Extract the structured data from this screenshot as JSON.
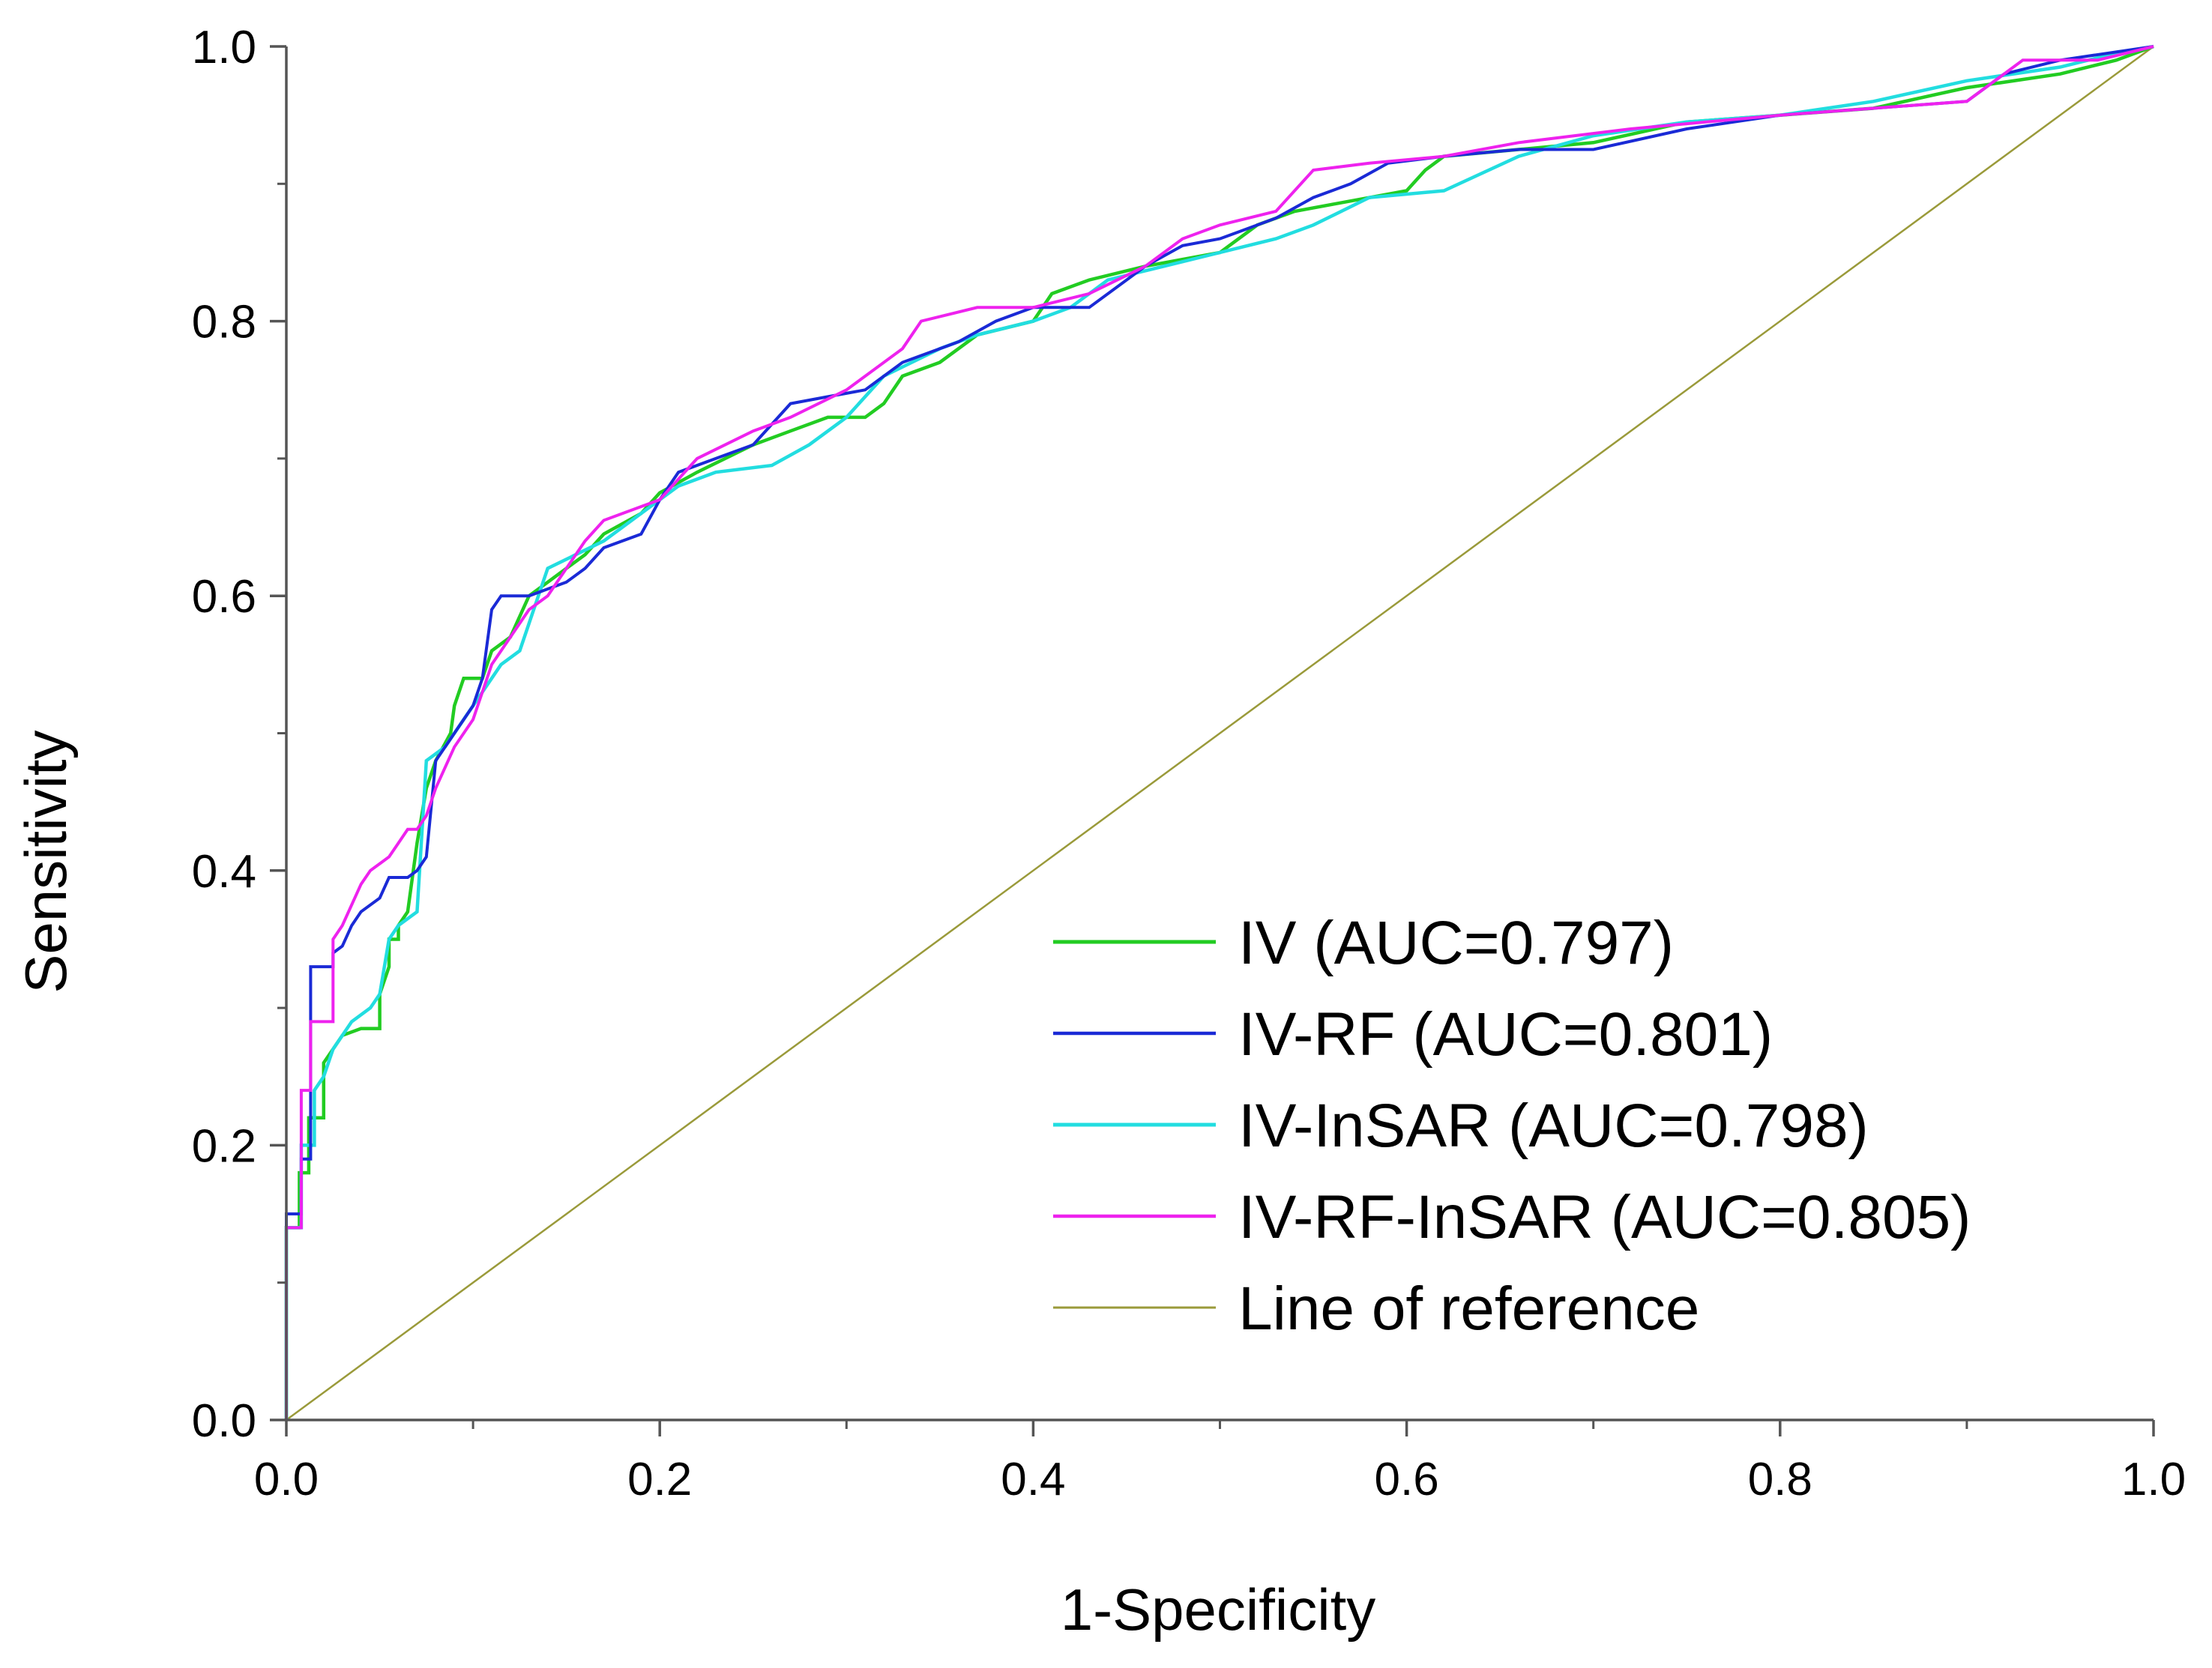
{
  "chart_data": {
    "type": "line",
    "title": "",
    "xlabel": "1-Specificity",
    "ylabel": "Sensitivity",
    "xlim": [
      0,
      1
    ],
    "ylim": [
      0,
      1
    ],
    "x_ticks": [
      "0.0",
      "0.2",
      "0.4",
      "0.6",
      "0.8",
      "1.0"
    ],
    "y_ticks": [
      "0.0",
      "0.2",
      "0.4",
      "0.6",
      "0.8",
      "1.0"
    ],
    "grid": false,
    "legend_position": "bottom-right",
    "series": [
      {
        "name": "IV (AUC=0.797)",
        "color": "#22cc22",
        "line_width": 4.5,
        "points": [
          [
            0,
            0
          ],
          [
            0,
            0.14
          ],
          [
            0.007,
            0.14
          ],
          [
            0.007,
            0.18
          ],
          [
            0.012,
            0.18
          ],
          [
            0.012,
            0.22
          ],
          [
            0.02,
            0.22
          ],
          [
            0.02,
            0.26
          ],
          [
            0.025,
            0.27
          ],
          [
            0.03,
            0.28
          ],
          [
            0.04,
            0.285
          ],
          [
            0.05,
            0.285
          ],
          [
            0.05,
            0.31
          ],
          [
            0.055,
            0.33
          ],
          [
            0.055,
            0.35
          ],
          [
            0.06,
            0.35
          ],
          [
            0.06,
            0.36
          ],
          [
            0.065,
            0.37
          ],
          [
            0.07,
            0.42
          ],
          [
            0.075,
            0.46
          ],
          [
            0.08,
            0.48
          ],
          [
            0.088,
            0.5
          ],
          [
            0.09,
            0.52
          ],
          [
            0.095,
            0.54
          ],
          [
            0.105,
            0.54
          ],
          [
            0.11,
            0.56
          ],
          [
            0.12,
            0.57
          ],
          [
            0.13,
            0.6
          ],
          [
            0.14,
            0.61
          ],
          [
            0.15,
            0.62
          ],
          [
            0.16,
            0.63
          ],
          [
            0.17,
            0.645
          ],
          [
            0.19,
            0.66
          ],
          [
            0.2,
            0.675
          ],
          [
            0.22,
            0.69
          ],
          [
            0.25,
            0.71
          ],
          [
            0.27,
            0.72
          ],
          [
            0.29,
            0.73
          ],
          [
            0.31,
            0.73
          ],
          [
            0.32,
            0.74
          ],
          [
            0.33,
            0.76
          ],
          [
            0.35,
            0.77
          ],
          [
            0.37,
            0.79
          ],
          [
            0.4,
            0.8
          ],
          [
            0.41,
            0.82
          ],
          [
            0.43,
            0.83
          ],
          [
            0.46,
            0.84
          ],
          [
            0.5,
            0.85
          ],
          [
            0.52,
            0.87
          ],
          [
            0.54,
            0.88
          ],
          [
            0.56,
            0.885
          ],
          [
            0.6,
            0.895
          ],
          [
            0.61,
            0.91
          ],
          [
            0.62,
            0.92
          ],
          [
            0.66,
            0.925
          ],
          [
            0.7,
            0.93
          ],
          [
            0.75,
            0.945
          ],
          [
            0.8,
            0.95
          ],
          [
            0.85,
            0.955
          ],
          [
            0.9,
            0.97
          ],
          [
            0.95,
            0.98
          ],
          [
            0.98,
            0.99
          ],
          [
            1,
            1
          ]
        ]
      },
      {
        "name": "IV-RF (AUC=0.801)",
        "color": "#1a2ad6",
        "line_width": 4,
        "points": [
          [
            0,
            0
          ],
          [
            0,
            0.15
          ],
          [
            0.008,
            0.15
          ],
          [
            0.008,
            0.19
          ],
          [
            0.013,
            0.19
          ],
          [
            0.013,
            0.33
          ],
          [
            0.025,
            0.33
          ],
          [
            0.025,
            0.34
          ],
          [
            0.03,
            0.345
          ],
          [
            0.035,
            0.36
          ],
          [
            0.04,
            0.37
          ],
          [
            0.05,
            0.38
          ],
          [
            0.055,
            0.395
          ],
          [
            0.065,
            0.395
          ],
          [
            0.07,
            0.4
          ],
          [
            0.075,
            0.41
          ],
          [
            0.08,
            0.48
          ],
          [
            0.09,
            0.5
          ],
          [
            0.1,
            0.52
          ],
          [
            0.105,
            0.54
          ],
          [
            0.11,
            0.59
          ],
          [
            0.115,
            0.6
          ],
          [
            0.13,
            0.6
          ],
          [
            0.14,
            0.605
          ],
          [
            0.15,
            0.61
          ],
          [
            0.16,
            0.62
          ],
          [
            0.17,
            0.635
          ],
          [
            0.19,
            0.645
          ],
          [
            0.2,
            0.67
          ],
          [
            0.21,
            0.69
          ],
          [
            0.23,
            0.7
          ],
          [
            0.25,
            0.71
          ],
          [
            0.27,
            0.74
          ],
          [
            0.29,
            0.745
          ],
          [
            0.31,
            0.75
          ],
          [
            0.33,
            0.77
          ],
          [
            0.36,
            0.785
          ],
          [
            0.38,
            0.8
          ],
          [
            0.4,
            0.81
          ],
          [
            0.43,
            0.81
          ],
          [
            0.46,
            0.84
          ],
          [
            0.48,
            0.855
          ],
          [
            0.5,
            0.86
          ],
          [
            0.53,
            0.875
          ],
          [
            0.55,
            0.89
          ],
          [
            0.57,
            0.9
          ],
          [
            0.59,
            0.915
          ],
          [
            0.62,
            0.92
          ],
          [
            0.66,
            0.925
          ],
          [
            0.7,
            0.925
          ],
          [
            0.75,
            0.94
          ],
          [
            0.8,
            0.95
          ],
          [
            0.85,
            0.955
          ],
          [
            0.9,
            0.96
          ],
          [
            0.92,
            0.98
          ],
          [
            0.95,
            0.99
          ],
          [
            1,
            1
          ]
        ]
      },
      {
        "name": "IV-InSAR (AUC=0.798)",
        "color": "#22dde0",
        "line_width": 4.5,
        "points": [
          [
            0,
            0
          ],
          [
            0,
            0.14
          ],
          [
            0.008,
            0.14
          ],
          [
            0.008,
            0.2
          ],
          [
            0.015,
            0.2
          ],
          [
            0.015,
            0.24
          ],
          [
            0.02,
            0.25
          ],
          [
            0.025,
            0.27
          ],
          [
            0.035,
            0.29
          ],
          [
            0.045,
            0.3
          ],
          [
            0.05,
            0.31
          ],
          [
            0.055,
            0.35
          ],
          [
            0.06,
            0.36
          ],
          [
            0.07,
            0.37
          ],
          [
            0.075,
            0.48
          ],
          [
            0.085,
            0.49
          ],
          [
            0.095,
            0.51
          ],
          [
            0.105,
            0.53
          ],
          [
            0.115,
            0.55
          ],
          [
            0.125,
            0.56
          ],
          [
            0.13,
            0.58
          ],
          [
            0.14,
            0.62
          ],
          [
            0.155,
            0.63
          ],
          [
            0.17,
            0.64
          ],
          [
            0.19,
            0.66
          ],
          [
            0.21,
            0.68
          ],
          [
            0.23,
            0.69
          ],
          [
            0.26,
            0.695
          ],
          [
            0.28,
            0.71
          ],
          [
            0.3,
            0.73
          ],
          [
            0.32,
            0.76
          ],
          [
            0.35,
            0.78
          ],
          [
            0.37,
            0.79
          ],
          [
            0.4,
            0.8
          ],
          [
            0.42,
            0.81
          ],
          [
            0.44,
            0.83
          ],
          [
            0.47,
            0.84
          ],
          [
            0.5,
            0.85
          ],
          [
            0.53,
            0.86
          ],
          [
            0.55,
            0.87
          ],
          [
            0.58,
            0.89
          ],
          [
            0.62,
            0.895
          ],
          [
            0.66,
            0.92
          ],
          [
            0.7,
            0.935
          ],
          [
            0.75,
            0.945
          ],
          [
            0.8,
            0.95
          ],
          [
            0.85,
            0.96
          ],
          [
            0.9,
            0.975
          ],
          [
            0.95,
            0.985
          ],
          [
            0.98,
            0.995
          ],
          [
            1,
            1
          ]
        ]
      },
      {
        "name": "IV-RF-InSAR (AUC=0.805)",
        "color": "#ee22ee",
        "line_width": 4,
        "points": [
          [
            0,
            0
          ],
          [
            0,
            0.14
          ],
          [
            0.008,
            0.14
          ],
          [
            0.008,
            0.24
          ],
          [
            0.013,
            0.24
          ],
          [
            0.013,
            0.29
          ],
          [
            0.025,
            0.29
          ],
          [
            0.025,
            0.35
          ],
          [
            0.03,
            0.36
          ],
          [
            0.04,
            0.39
          ],
          [
            0.045,
            0.4
          ],
          [
            0.055,
            0.41
          ],
          [
            0.06,
            0.42
          ],
          [
            0.065,
            0.43
          ],
          [
            0.07,
            0.43
          ],
          [
            0.075,
            0.44
          ],
          [
            0.08,
            0.46
          ],
          [
            0.09,
            0.49
          ],
          [
            0.1,
            0.51
          ],
          [
            0.11,
            0.55
          ],
          [
            0.12,
            0.57
          ],
          [
            0.13,
            0.59
          ],
          [
            0.14,
            0.6
          ],
          [
            0.15,
            0.62
          ],
          [
            0.16,
            0.64
          ],
          [
            0.17,
            0.655
          ],
          [
            0.2,
            0.67
          ],
          [
            0.22,
            0.7
          ],
          [
            0.25,
            0.72
          ],
          [
            0.27,
            0.73
          ],
          [
            0.3,
            0.75
          ],
          [
            0.33,
            0.78
          ],
          [
            0.34,
            0.8
          ],
          [
            0.37,
            0.81
          ],
          [
            0.4,
            0.81
          ],
          [
            0.43,
            0.82
          ],
          [
            0.46,
            0.84
          ],
          [
            0.48,
            0.86
          ],
          [
            0.5,
            0.87
          ],
          [
            0.53,
            0.88
          ],
          [
            0.55,
            0.91
          ],
          [
            0.58,
            0.915
          ],
          [
            0.62,
            0.92
          ],
          [
            0.66,
            0.93
          ],
          [
            0.72,
            0.94
          ],
          [
            0.8,
            0.95
          ],
          [
            0.85,
            0.955
          ],
          [
            0.9,
            0.96
          ],
          [
            0.93,
            0.99
          ],
          [
            0.97,
            0.99
          ],
          [
            1,
            1
          ]
        ]
      },
      {
        "name": "Line of reference",
        "color": "#9a9a3a",
        "line_width": 2.5,
        "points": [
          [
            0,
            0
          ],
          [
            1,
            1
          ]
        ]
      }
    ]
  }
}
